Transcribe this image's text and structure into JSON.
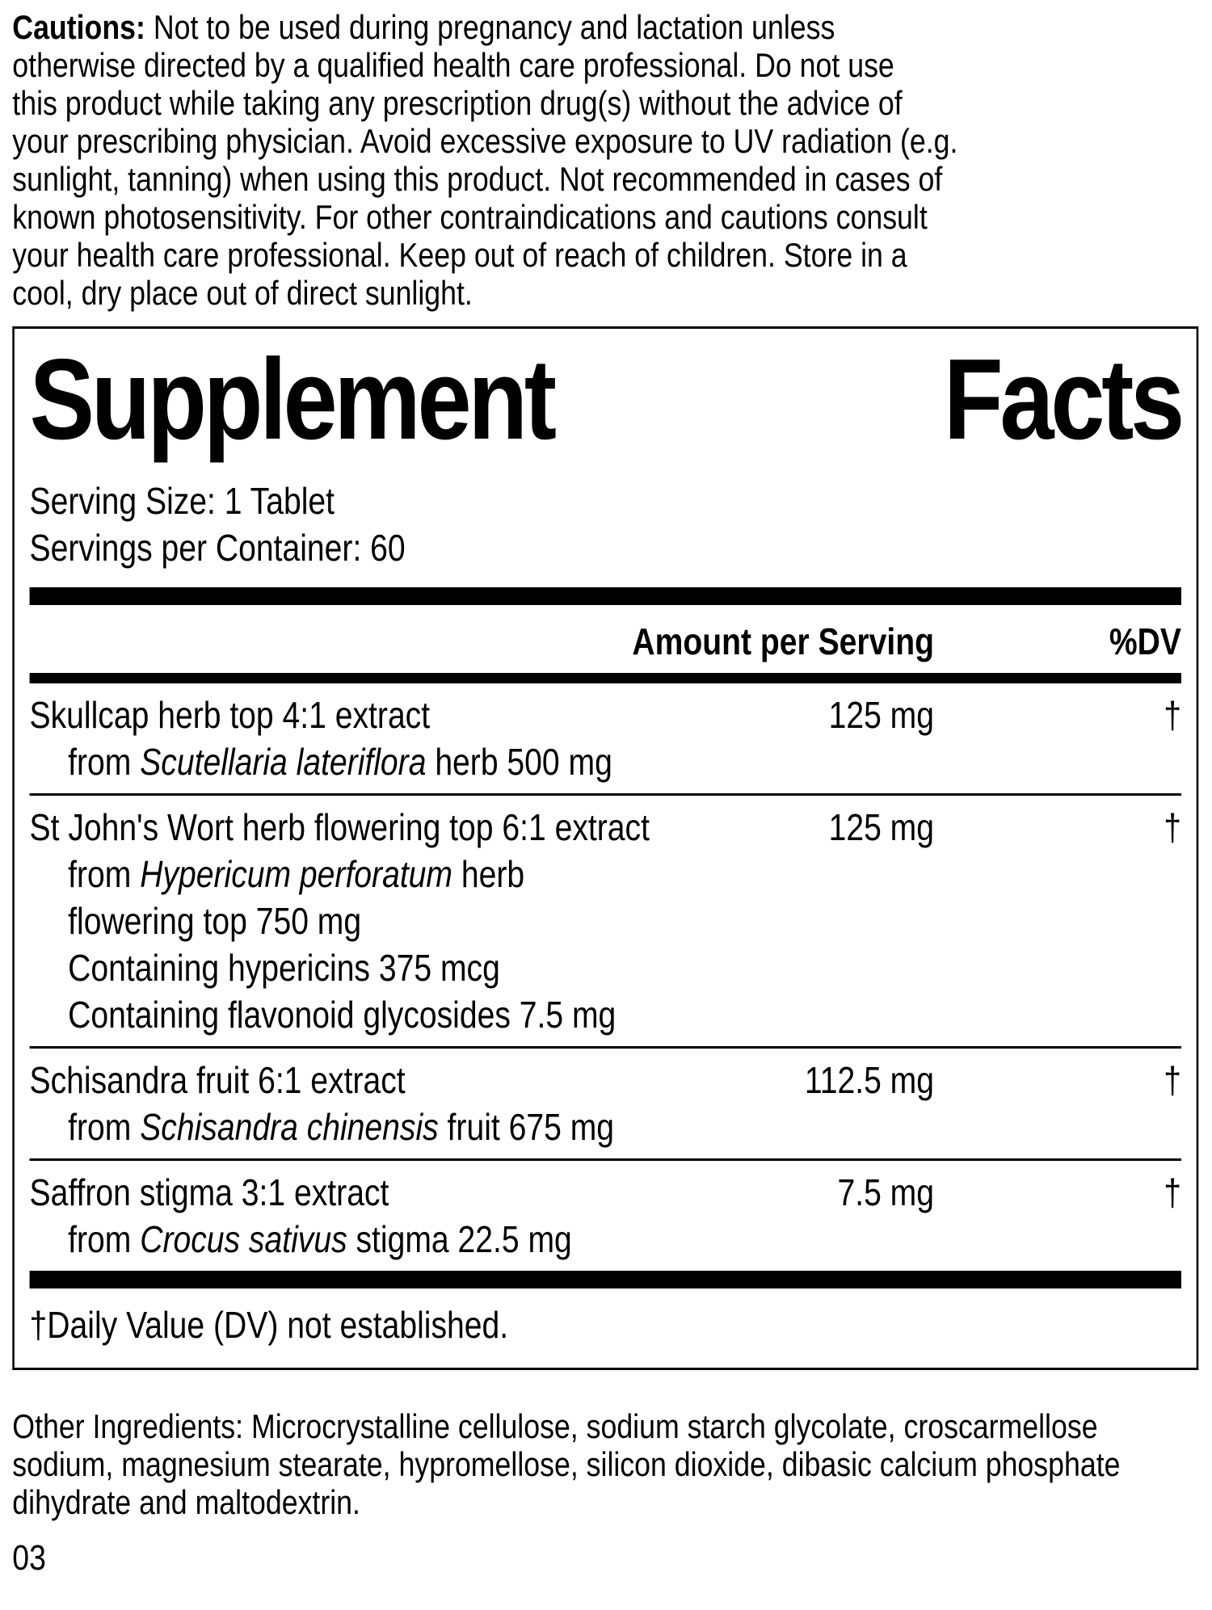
{
  "cautions": {
    "label": "Cautions:",
    "first_line_rest": " Not to be used during pregnancy and lactation unless",
    "rest_lines": "otherwise directed by a qualified health care professional. Do not use\nthis product while taking any prescription drug(s) without the advice of\nyour prescribing physician. Avoid excessive exposure to UV radiation (e.g.\nsunlight, tanning) when using this product. Not recommended in cases of\nknown photosensitivity. For other contraindications and cautions consult\nyour health care professional. Keep out of reach of children. Store in a\ncool, dry place out of direct sunlight."
  },
  "panel": {
    "title_word1": "Supplement",
    "title_word2": "Facts",
    "serving_size": "Serving Size: 1 Tablet",
    "servings_per_container": "Servings per Container: 60",
    "header": {
      "amount": "Amount per Serving",
      "dv": "%DV"
    },
    "rows": [
      {
        "name": "Skullcap herb top 4:1 extract",
        "amount": "125 mg",
        "dv": "†",
        "sublines": [
          {
            "pre": "from ",
            "italic": "Scutellaria lateriflora",
            "post": " herb 500 mg"
          }
        ]
      },
      {
        "name": "St John's Wort herb flowering top 6:1 extract",
        "amount": "125 mg",
        "dv": "†",
        "sublines": [
          {
            "pre": "from ",
            "italic": "Hypericum perforatum",
            "post": " herb"
          },
          {
            "pre": "flowering top 750 mg",
            "italic": "",
            "post": ""
          },
          {
            "pre": "Containing hypericins 375 mcg",
            "italic": "",
            "post": ""
          },
          {
            "pre": "Containing flavonoid glycosides 7.5 mg",
            "italic": "",
            "post": ""
          }
        ]
      },
      {
        "name": "Schisandra fruit 6:1 extract",
        "amount": "112.5 mg",
        "dv": "†",
        "sublines": [
          {
            "pre": "from ",
            "italic": "Schisandra chinensis",
            "post": " fruit 675 mg"
          }
        ]
      },
      {
        "name": "Saffron stigma 3:1 extract",
        "amount": "7.5 mg",
        "dv": "†",
        "sublines": [
          {
            "pre": "from ",
            "italic": "Crocus sativus",
            "post": " stigma 22.5 mg"
          }
        ]
      }
    ],
    "footnote": "†Daily Value (DV) not established."
  },
  "other_ingredients": "Other Ingredients: Microcrystalline cellulose, sodium starch glycolate,\ncroscarmellose sodium, magnesium stearate, hypromellose, silicon\ndioxide, dibasic calcium phosphate dihydrate and maltodextrin.",
  "page_number": "03",
  "colors": {
    "text": "#000000",
    "background": "#ffffff"
  }
}
